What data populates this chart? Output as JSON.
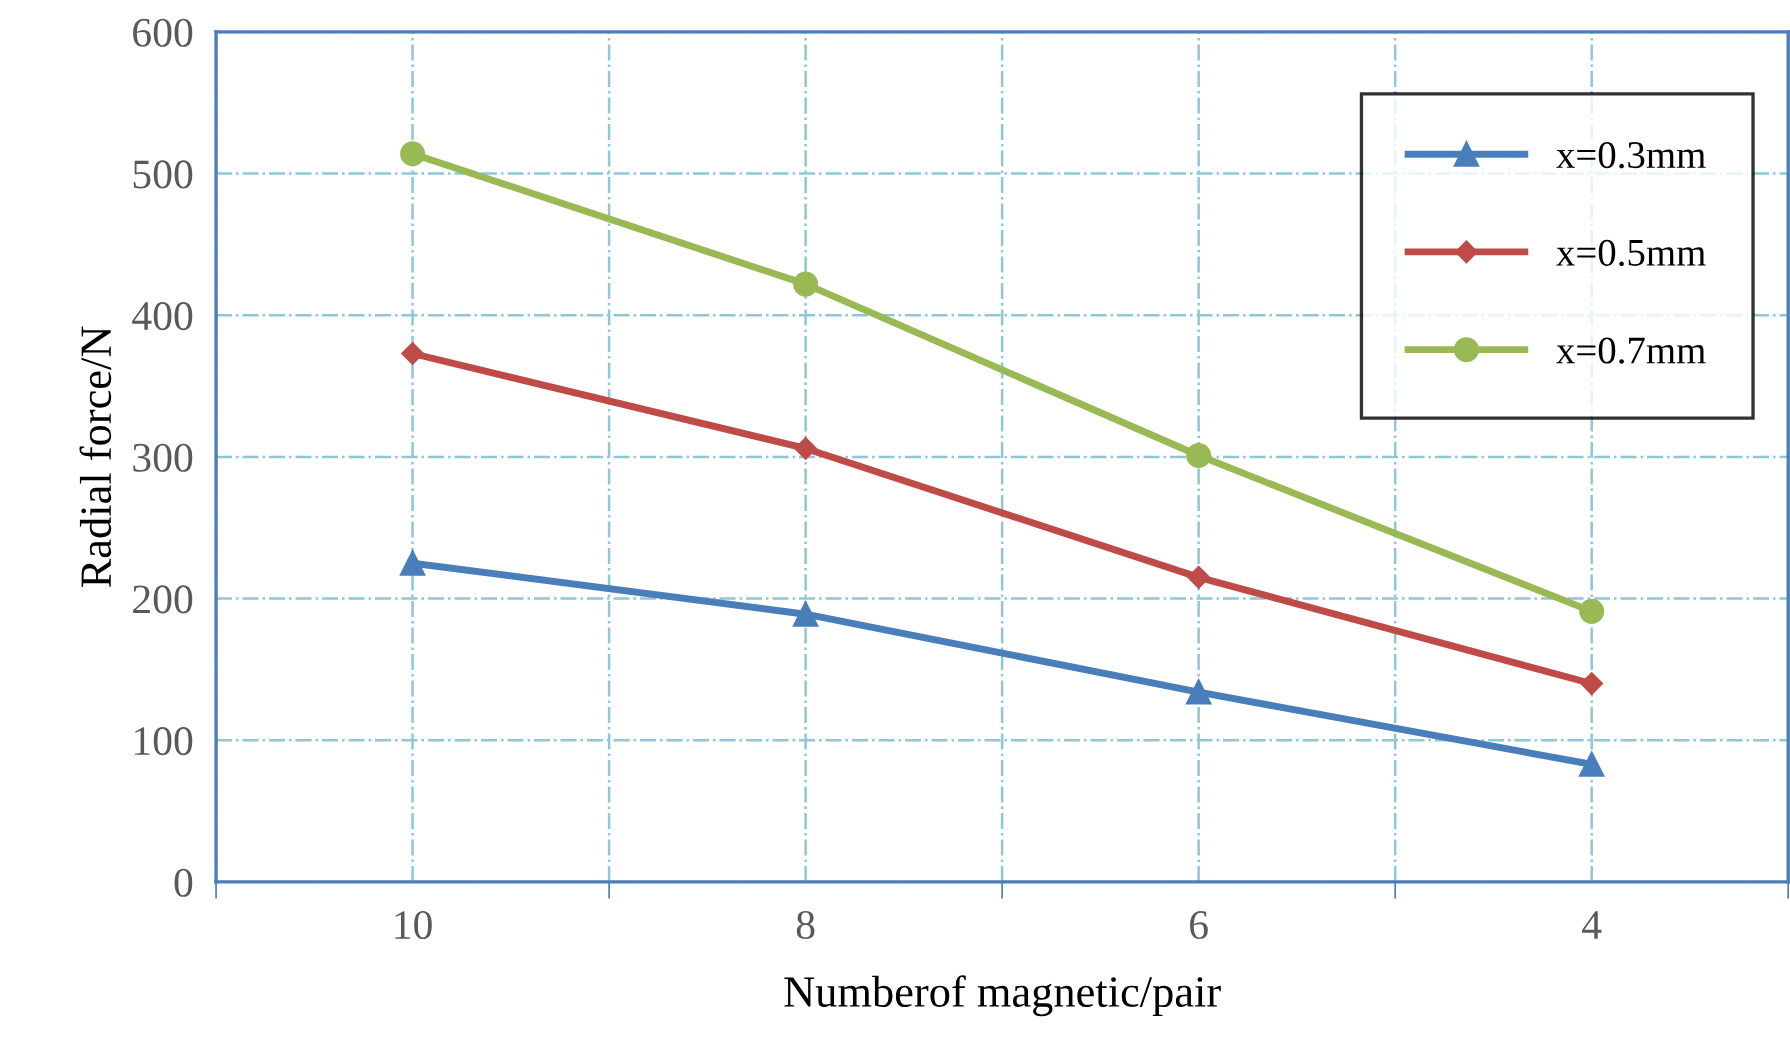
{
  "chart_data": {
    "type": "line",
    "xlabel": "Numberof magnetic/pair",
    "ylabel": "Radial force/N",
    "categories": [
      "10",
      "8",
      "6",
      "4"
    ],
    "series": [
      {
        "name": "x=0.3mm",
        "color": "#4a7ebb",
        "marker": "triangle",
        "values": [
          225,
          189,
          134,
          83
        ]
      },
      {
        "name": "x=0.5mm",
        "color": "#be4b48",
        "marker": "diamond",
        "values": [
          373,
          306,
          215,
          140
        ]
      },
      {
        "name": "x=0.7mm",
        "color": "#98b954",
        "marker": "circle",
        "values": [
          514,
          422,
          301,
          191
        ]
      }
    ],
    "ylim": [
      0,
      600
    ],
    "yticks": [
      0,
      100,
      200,
      300,
      400,
      500,
      600
    ],
    "grid": true,
    "legend": "top right",
    "line_style": "solid"
  }
}
